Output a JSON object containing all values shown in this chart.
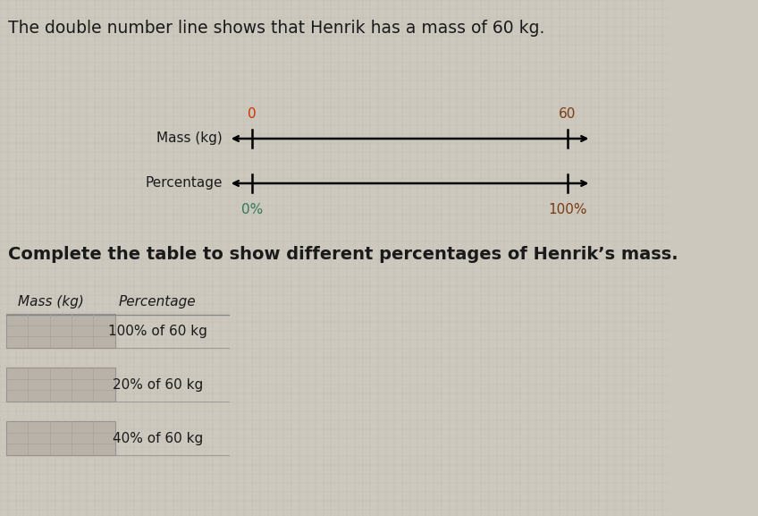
{
  "title": "The double number line shows that Henrik has a mass of 60 kg.",
  "title_fontsize": 13.5,
  "subtitle": "Complete the table to show different percentages of Henrik’s mass.",
  "subtitle_fontsize": 14,
  "bg_color": "#ccc8be",
  "text_color": "#1a1a1a",
  "line1_label": "Mass (kg)",
  "line2_label": "Percentage",
  "line1_tick_left": "0",
  "line1_tick_right": "60",
  "line2_tick_left": "0%",
  "line2_tick_right": "100%",
  "color_0": "#cc3300",
  "color_60": "#7a3b10",
  "color_0pct": "#2d7a5a",
  "color_100pct": "#7a3b10",
  "table_col1": "Mass (kg)",
  "table_col2": "Percentage",
  "table_rows": [
    "100% of 60 kg",
    "20% of 60 kg",
    "40% of 60 kg"
  ],
  "cell_fill": "#b8b2a8",
  "cell_border": "#999090"
}
